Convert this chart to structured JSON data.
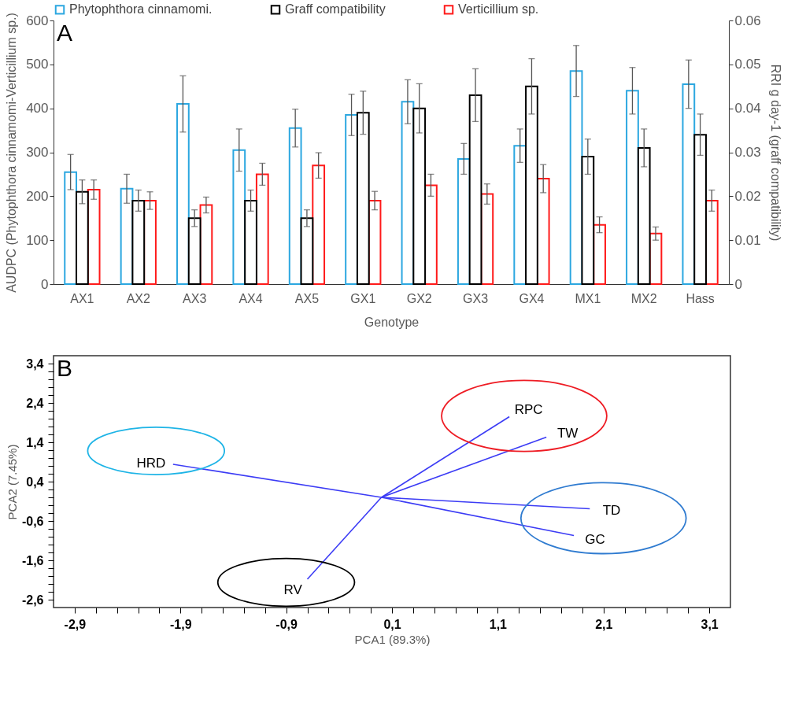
{
  "chart_data": [
    {
      "type": "bar",
      "xlabel": "Genotype",
      "ylabel": "AUDPC (Phytophthora cinnamomi-Verticillium sp.)",
      "y2label": "RRI g day-1 (graff compatibility)",
      "annotations": [
        "A"
      ],
      "legend": "top",
      "grid": false,
      "categories": [
        "AX1",
        "AX2",
        "AX3",
        "AX4",
        "AX5",
        "GX1",
        "GX2",
        "GX3",
        "GX4",
        "MX1",
        "MX2",
        "Hass"
      ],
      "ylim": [
        0,
        600
      ],
      "yticks": [
        0,
        100,
        200,
        300,
        400,
        500,
        600
      ],
      "y2lim": [
        0,
        0.06
      ],
      "y2ticks": [
        0,
        0.01,
        0.02,
        0.03,
        0.04,
        0.05,
        0.06
      ],
      "series": [
        {
          "name": "Phytophthora cinnamomi.",
          "color": "#2ca7e0",
          "values": [
            255,
            217,
            410,
            305,
            355,
            385,
            415,
            285,
            315,
            485,
            440,
            455
          ],
          "errors": [
            40,
            33,
            64,
            48,
            43,
            47,
            50,
            35,
            38,
            58,
            53,
            55
          ]
        },
        {
          "name": "Graff compatibility",
          "color": "#000000",
          "axis": "y2",
          "values": [
            0.021,
            0.019,
            0.015,
            0.019,
            0.015,
            0.039,
            0.04,
            0.043,
            0.045,
            0.029,
            0.031,
            0.034
          ],
          "errors": [
            0.0027,
            0.0024,
            0.0019,
            0.0024,
            0.0019,
            0.0049,
            0.0056,
            0.006,
            0.0063,
            0.004,
            0.0043,
            0.0047
          ]
        },
        {
          "name": "Verticillium sp.",
          "color": "#ff1a1a",
          "values": [
            215,
            190,
            180,
            250,
            270,
            190,
            225,
            205,
            240,
            135,
            115,
            190
          ],
          "errors": [
            22,
            20,
            18,
            25,
            29,
            21,
            25,
            23,
            32,
            18,
            15,
            24
          ]
        }
      ]
    },
    {
      "type": "line",
      "xlabel": "PCA1 (89.3%)",
      "ylabel": "PCA2 (7.45%)",
      "grid": false,
      "legend": false,
      "marker": "none",
      "xlim": [
        -3.1,
        3.3
      ],
      "ylim": [
        -2.8,
        3.6
      ],
      "xticks": [
        {
          "value": -2.9,
          "label": "-2,9"
        },
        {
          "value": -2.7,
          "label": null
        },
        {
          "value": -2.5,
          "label": null
        },
        {
          "value": -2.3,
          "label": null
        },
        {
          "value": -2.1,
          "label": null
        },
        {
          "value": -1.9,
          "label": "-1,9"
        },
        {
          "value": -1.7,
          "label": null
        },
        {
          "value": -1.5,
          "label": null
        },
        {
          "value": -1.3,
          "label": null
        },
        {
          "value": -1.1,
          "label": null
        },
        {
          "value": -0.9,
          "label": "-0,9"
        },
        {
          "value": -0.7,
          "label": null
        },
        {
          "value": -0.5,
          "label": null
        },
        {
          "value": -0.3,
          "label": null
        },
        {
          "value": -0.1,
          "label": null
        },
        {
          "value": 0.1,
          "label": "0,1"
        },
        {
          "value": 0.3,
          "label": null
        },
        {
          "value": 0.5,
          "label": null
        },
        {
          "value": 0.7,
          "label": null
        },
        {
          "value": 0.9,
          "label": null
        },
        {
          "value": 1.1,
          "label": "1,1"
        },
        {
          "value": 1.3,
          "label": null
        },
        {
          "value": 1.5,
          "label": null
        },
        {
          "value": 1.7,
          "label": null
        },
        {
          "value": 1.9,
          "label": null
        },
        {
          "value": 2.1,
          "label": "2,1"
        },
        {
          "value": 2.3,
          "label": null
        },
        {
          "value": 2.5,
          "label": null
        },
        {
          "value": 2.7,
          "label": null
        },
        {
          "value": 2.9,
          "label": null
        },
        {
          "value": 3.1,
          "label": "3,1"
        }
      ],
      "yticks": [
        {
          "value": -2.6,
          "label": "-2,6"
        },
        {
          "value": -2.4,
          "label": null
        },
        {
          "value": -2.2,
          "label": null
        },
        {
          "value": -2.0,
          "label": null
        },
        {
          "value": -1.8,
          "label": null
        },
        {
          "value": -1.6,
          "label": "-1,6"
        },
        {
          "value": -1.4,
          "label": null
        },
        {
          "value": -1.2,
          "label": null
        },
        {
          "value": -1.0,
          "label": null
        },
        {
          "value": -0.8,
          "label": null
        },
        {
          "value": -0.6,
          "label": "-0,6"
        },
        {
          "value": -0.4,
          "label": null
        },
        {
          "value": -0.2,
          "label": null
        },
        {
          "value": 0,
          "label": null
        },
        {
          "value": 0.2,
          "label": null
        },
        {
          "value": 0.4,
          "label": "0,4"
        },
        {
          "value": 0.6,
          "label": null
        },
        {
          "value": 0.8,
          "label": null
        },
        {
          "value": 1.0,
          "label": null
        },
        {
          "value": 1.2,
          "label": null
        },
        {
          "value": 1.4,
          "label": "1,4"
        },
        {
          "value": 1.6,
          "label": null
        },
        {
          "value": 1.8,
          "label": null
        },
        {
          "value": 2.0,
          "label": null
        },
        {
          "value": 2.2,
          "label": null
        },
        {
          "value": 2.4,
          "label": "2,4"
        },
        {
          "value": 2.6,
          "label": null
        },
        {
          "value": 2.8,
          "label": null
        },
        {
          "value": 3.0,
          "label": null
        },
        {
          "value": 3.2,
          "label": null
        },
        {
          "value": 3.4,
          "label": "3,4"
        }
      ],
      "annotations": [
        "B",
        {
          "text": "HRD",
          "x": -1.97,
          "y": 0.84
        },
        {
          "text": "RV",
          "x": -0.7,
          "y": -2.08
        },
        {
          "text": "RPC",
          "x": 1.21,
          "y": 2.05
        },
        {
          "text": "TW",
          "x": 1.56,
          "y": 1.53
        },
        {
          "text": "TD",
          "x": 1.97,
          "y": -0.29
        },
        {
          "text": "GC",
          "x": 1.82,
          "y": -0.97
        }
      ],
      "series": [
        {
          "color": "#3c3cf5",
          "x": [
            -1.97,
            0,
            -0.7,
            null,
            0,
            1.21,
            null,
            0,
            1.56,
            null,
            0,
            1.97,
            null,
            0,
            1.82
          ],
          "values": [
            0.84,
            0,
            -2.08,
            null,
            0,
            2.05,
            null,
            0,
            1.53,
            null,
            0,
            -0.29,
            null,
            0,
            -0.97
          ]
        }
      ]
    }
  ]
}
